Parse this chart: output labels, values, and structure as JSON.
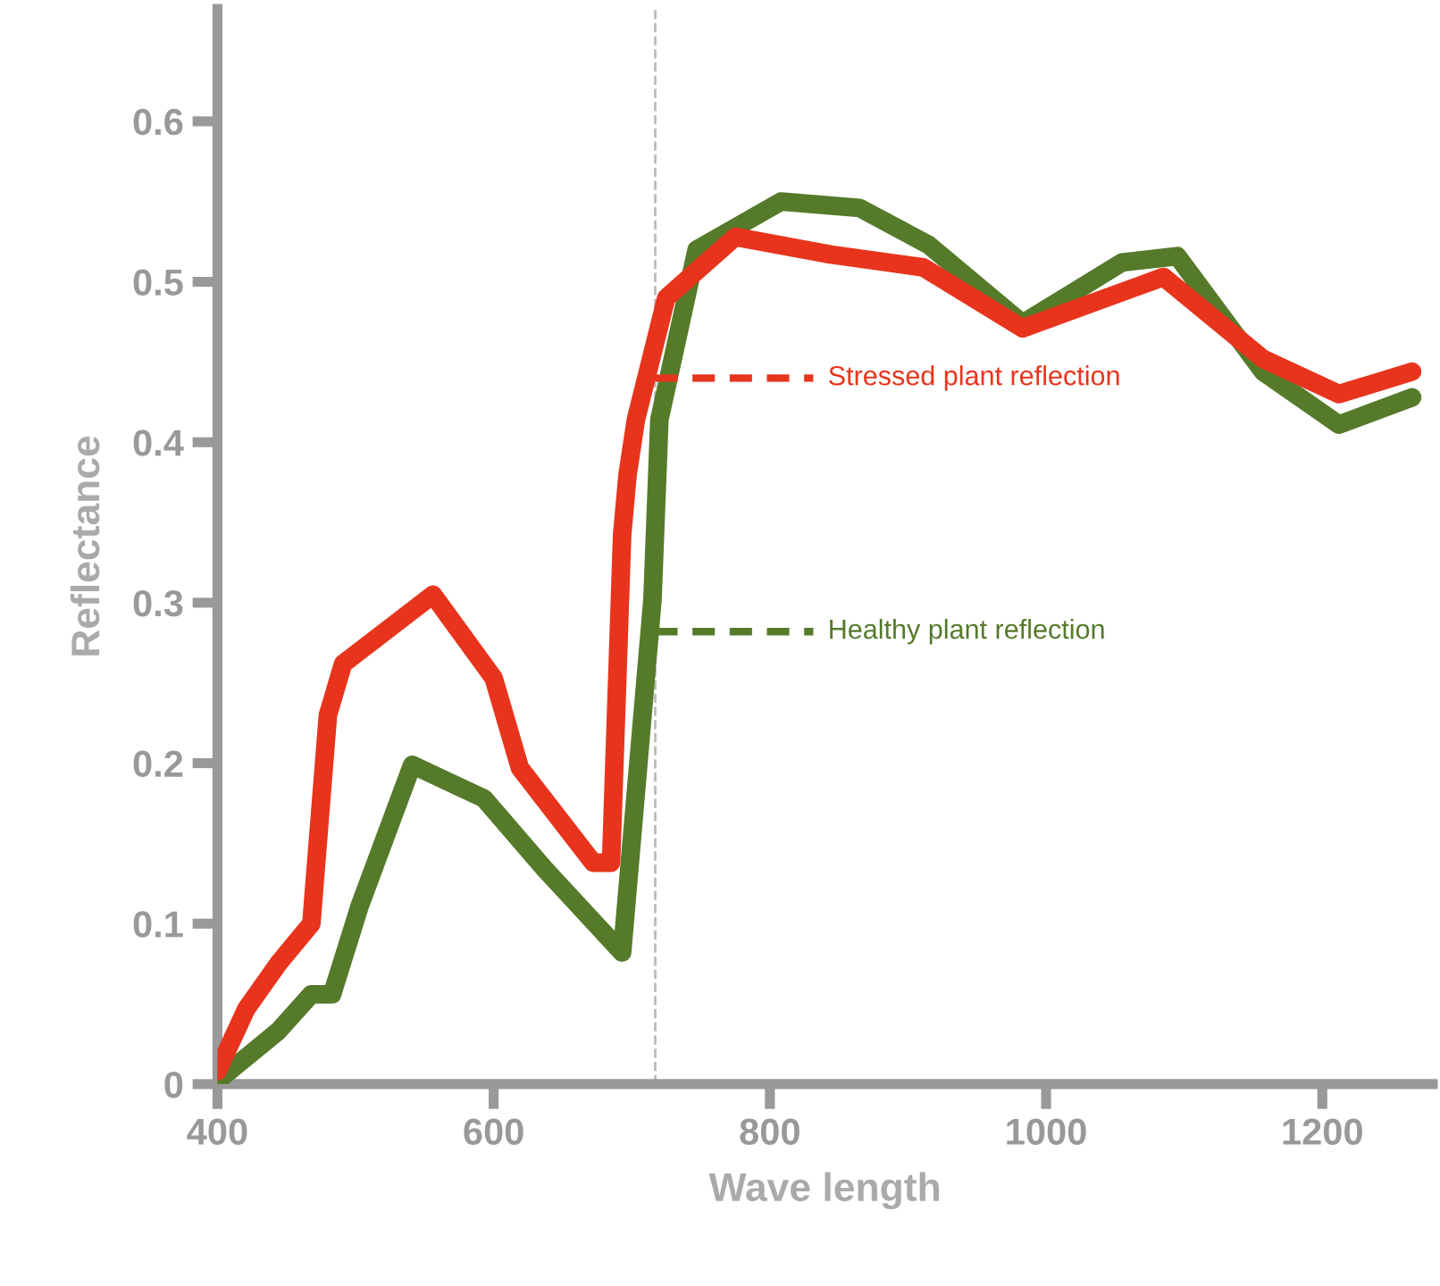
{
  "chart_data": {
    "type": "line",
    "xlabel": "Wave length",
    "ylabel": "Reflectance",
    "xlim": [
      400,
      1280
    ],
    "ylim": [
      0,
      0.67
    ],
    "xticks": [
      400,
      600,
      800,
      1000,
      1200
    ],
    "yticks": [
      0,
      0.1,
      0.2,
      0.3,
      0.4,
      0.5,
      0.6
    ],
    "grid": false,
    "legend": false,
    "marker": "none",
    "line_style": "solid",
    "ref_lines": [
      {
        "axis": "x",
        "value": 717,
        "color": "#bbbbbb",
        "line_style": "dashed"
      }
    ],
    "series": [
      {
        "color": "#557a2a",
        "x": [
          400,
          444,
          468,
          483,
          503,
          541,
          593,
          637,
          693,
          715,
          720,
          747,
          808,
          865,
          915,
          983,
          1055,
          1095,
          1157,
          1212,
          1265
        ],
        "values": [
          0.002,
          0.033,
          0.056,
          0.056,
          0.111,
          0.199,
          0.178,
          0.134,
          0.082,
          0.302,
          0.414,
          0.52,
          0.55,
          0.546,
          0.523,
          0.474,
          0.512,
          0.516,
          0.444,
          0.411,
          0.428
        ]
      },
      {
        "color": "#e8341c",
        "x": [
          400,
          421,
          444,
          468,
          480,
          491,
          556,
          600,
          619,
          672,
          685,
          693,
          697,
          703,
          725,
          775,
          844,
          911,
          983,
          1085,
          1157,
          1212,
          1265
        ],
        "values": [
          0.008,
          0.047,
          0.075,
          0.1,
          0.23,
          0.262,
          0.305,
          0.253,
          0.197,
          0.138,
          0.138,
          0.342,
          0.38,
          0.414,
          0.49,
          0.528,
          0.517,
          0.509,
          0.471,
          0.503,
          0.452,
          0.43,
          0.444
        ]
      }
    ],
    "annotations": [
      {
        "text": "Stressed plant reflection",
        "x": 717,
        "y": 0.44
      },
      {
        "text": "Healthy plant reflection",
        "x": 717,
        "y": 0.282
      }
    ]
  }
}
